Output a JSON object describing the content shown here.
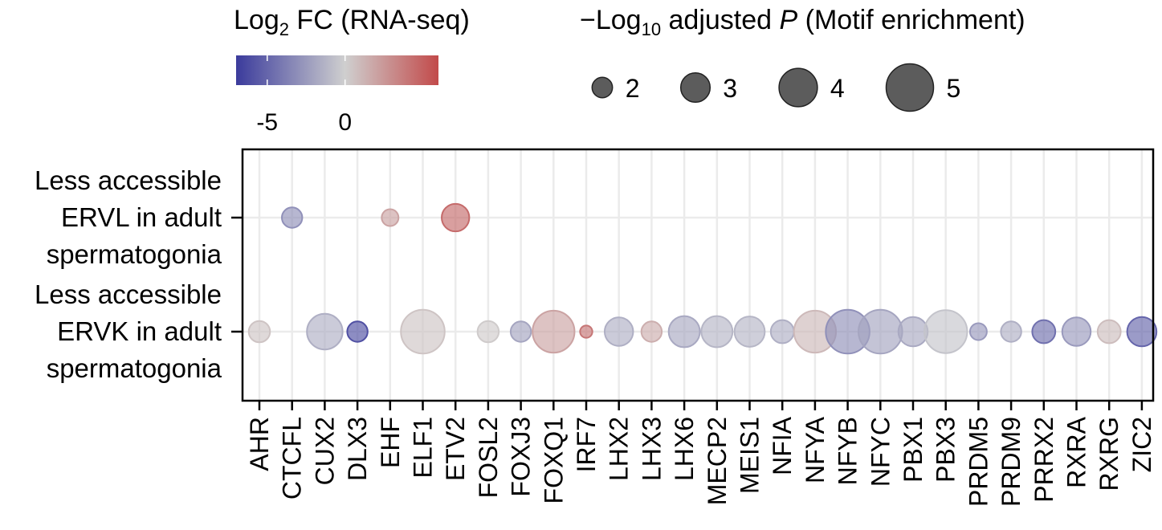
{
  "chart_data": {
    "type": "scatter",
    "title": "",
    "xlabel": "",
    "ylabel": "",
    "grid": true,
    "categories": [
      "AHR",
      "CTCFL",
      "CUX2",
      "DLX3",
      "EHF",
      "ELF1",
      "ETV2",
      "FOSL2",
      "FOXJ3",
      "FOXQ1",
      "IRF7",
      "LHX2",
      "LHX3",
      "LHX6",
      "MECP2",
      "MEIS1",
      "NFIA",
      "NFYA",
      "NFYB",
      "NFYC",
      "PBX1",
      "PBX3",
      "PRDM5",
      "PRDM9",
      "PRRX2",
      "RXRA",
      "RXRG",
      "ZIC2"
    ],
    "rows": [
      {
        "label_lines": [
          "Less accessible",
          "ERVL in adult",
          "spermatogonia"
        ]
      },
      {
        "label_lines": [
          "Less accessible",
          "ERVK in adult",
          "spermatogonia"
        ]
      }
    ],
    "color_legend": {
      "title_main": "Log",
      "title_sub": "2",
      "title_rest": " FC (RNA-seq)",
      "ticks": [
        -5,
        0
      ],
      "tick_labels": [
        "-5",
        "0"
      ],
      "range": [
        -7,
        6
      ],
      "colors": {
        "low": "#3b3b9c",
        "mid": "#cfcfcf",
        "high": "#c24a4a"
      }
    },
    "size_legend": {
      "title_prefix": "−Log",
      "title_sub": "10",
      "title_mid": " adjusted ",
      "title_italic": "P",
      "title_rest": " (Motif enrichment)",
      "values": [
        2,
        3,
        4,
        5
      ],
      "labels": [
        "2",
        "3",
        "4",
        "5"
      ],
      "point_color": "#5c5c5c"
    },
    "points": [
      {
        "tf": "CTCFL",
        "row": 0,
        "size": 2.0,
        "fc": -3.0
      },
      {
        "tf": "EHF",
        "row": 0,
        "size": 1.6,
        "fc": 2.0
      },
      {
        "tf": "ETV2",
        "row": 0,
        "size": 2.8,
        "fc": 4.5
      },
      {
        "tf": "AHR",
        "row": 1,
        "size": 2.1,
        "fc": 0.5
      },
      {
        "tf": "CUX2",
        "row": 1,
        "size": 3.7,
        "fc": -1.5
      },
      {
        "tf": "DLX3",
        "row": 1,
        "size": 2.0,
        "fc": -6.0
      },
      {
        "tf": "ELF1",
        "row": 1,
        "size": 4.6,
        "fc": 0.5
      },
      {
        "tf": "FOSL2",
        "row": 1,
        "size": 2.1,
        "fc": 0.2
      },
      {
        "tf": "FOXJ3",
        "row": 1,
        "size": 2.0,
        "fc": -2.0
      },
      {
        "tf": "FOXQ1",
        "row": 1,
        "size": 4.4,
        "fc": 2.0
      },
      {
        "tf": "IRF7",
        "row": 1,
        "size": 1.1,
        "fc": 4.0
      },
      {
        "tf": "LHX2",
        "row": 1,
        "size": 2.9,
        "fc": -1.5
      },
      {
        "tf": "LHX3",
        "row": 1,
        "size": 2.0,
        "fc": 1.5
      },
      {
        "tf": "LHX6",
        "row": 1,
        "size": 3.2,
        "fc": -1.8
      },
      {
        "tf": "MECP2",
        "row": 1,
        "size": 3.2,
        "fc": -1.2
      },
      {
        "tf": "MEIS1",
        "row": 1,
        "size": 3.1,
        "fc": -1.2
      },
      {
        "tf": "NFIA",
        "row": 1,
        "size": 2.3,
        "fc": -1.5
      },
      {
        "tf": "NFYA",
        "row": 1,
        "size": 4.4,
        "fc": 1.0
      },
      {
        "tf": "NFYB",
        "row": 1,
        "size": 4.6,
        "fc": -3.0
      },
      {
        "tf": "NFYC",
        "row": 1,
        "size": 4.6,
        "fc": -2.0
      },
      {
        "tf": "PBX1",
        "row": 1,
        "size": 3.0,
        "fc": -1.8
      },
      {
        "tf": "PBX3",
        "row": 1,
        "size": 4.5,
        "fc": -0.5
      },
      {
        "tf": "PRDM5",
        "row": 1,
        "size": 1.6,
        "fc": -2.5
      },
      {
        "tf": "PRDM9",
        "row": 1,
        "size": 2.0,
        "fc": -1.5
      },
      {
        "tf": "PRRX2",
        "row": 1,
        "size": 2.3,
        "fc": -4.5
      },
      {
        "tf": "RXRA",
        "row": 1,
        "size": 2.9,
        "fc": -2.5
      },
      {
        "tf": "RXRG",
        "row": 1,
        "size": 2.3,
        "fc": 0.8
      },
      {
        "tf": "ZIC2",
        "row": 1,
        "size": 3.0,
        "fc": -5.0
      }
    ]
  }
}
